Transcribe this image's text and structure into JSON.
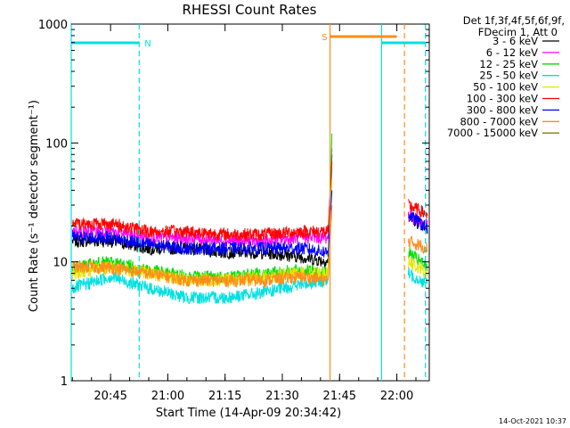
{
  "chart_data": {
    "type": "line",
    "title": "RHESSI Count Rates",
    "xlabel": "Start Time (14-Apr-09 20:34:42)",
    "ylabel": "Count Rate (s⁻¹ detector segment⁻¹)",
    "yscale": "log",
    "ylim": [
      1,
      1000
    ],
    "xlim": [
      "20:34:42",
      "22:08:30"
    ],
    "y_ticks": [
      "1",
      "10",
      "100",
      "1000"
    ],
    "x_ticks": [
      "20:45",
      "21:00",
      "21:15",
      "21:30",
      "21:45",
      "22:00"
    ],
    "legend_header": [
      "Det 1f,3f,4f,5f,6f,9f,",
      "FDecim 1, Att 0"
    ],
    "legend_position": "right",
    "timestamp": "14-Oct-2021 10:37",
    "attenuator_state": [
      {
        "label": "N",
        "start": "20:34:42",
        "end": "20:52:30",
        "color": "#00e0e0"
      },
      {
        "label": "S",
        "start": "21:42:30",
        "end": "22:00:00",
        "color": "#ff8c1a"
      },
      {
        "label": "",
        "start": "21:56:00",
        "end": "22:07:30",
        "color": "#00e0e0"
      }
    ],
    "vertical_markers": [
      {
        "time": "20:34:42",
        "color": "#00e0e0",
        "style": "solid"
      },
      {
        "time": "20:52:30",
        "color": "#00e0e0",
        "style": "dashed"
      },
      {
        "time": "21:42:30",
        "color": "#ff8c1a",
        "style": "solid"
      },
      {
        "time": "21:56:00",
        "color": "#00e0e0",
        "style": "solid"
      },
      {
        "time": "22:02:00",
        "color": "#ff8c1a",
        "style": "dashed"
      },
      {
        "time": "22:07:30",
        "color": "#00e0e0",
        "style": "dashed"
      }
    ],
    "series": [
      {
        "name": "3 - 6 keV",
        "color": "#000000",
        "x": [
          "20:35",
          "20:45",
          "20:55",
          "21:05",
          "21:15",
          "21:25",
          "21:35",
          "21:42",
          "21:43",
          "21:58",
          "22:03",
          "22:08"
        ],
        "y": [
          15,
          15,
          13,
          13,
          12,
          12,
          11,
          10,
          80,
          null,
          24,
          19
        ]
      },
      {
        "name": "6 - 12 keV",
        "color": "#ff00ff",
        "x": [
          "20:35",
          "20:45",
          "20:55",
          "21:05",
          "21:15",
          "21:25",
          "21:35",
          "21:42",
          "21:43",
          "21:58",
          "22:03",
          "22:08"
        ],
        "y": [
          18,
          18,
          16,
          16,
          15,
          15,
          16,
          16,
          90,
          null,
          25,
          20
        ]
      },
      {
        "name": "12 - 25 keV",
        "color": "#00dd00",
        "x": [
          "20:35",
          "20:45",
          "20:55",
          "21:05",
          "21:15",
          "21:25",
          "21:35",
          "21:42",
          "21:43",
          "21:58",
          "22:03",
          "22:08"
        ],
        "y": [
          9,
          10,
          8.5,
          7.5,
          7.5,
          8,
          8.5,
          8,
          120,
          null,
          12,
          9
        ]
      },
      {
        "name": "25 - 50 keV",
        "color": "#00e0e0",
        "x": [
          "20:35",
          "20:45",
          "20:55",
          "21:05",
          "21:15",
          "21:25",
          "21:35",
          "21:42",
          "21:43",
          "21:58",
          "22:03",
          "22:08"
        ],
        "y": [
          6,
          7.5,
          6,
          5,
          5,
          5.5,
          6.5,
          7,
          60,
          null,
          8,
          6.5
        ]
      },
      {
        "name": "50 - 100 keV",
        "color": "#e6e600",
        "x": [
          "20:35",
          "20:45",
          "20:55",
          "21:05",
          "21:15",
          "21:25",
          "21:35",
          "21:42",
          "21:43",
          "21:58",
          "22:03",
          "22:08"
        ],
        "y": [
          8,
          9,
          8,
          7,
          7,
          7.5,
          8,
          8,
          50,
          null,
          10,
          8
        ]
      },
      {
        "name": "100 - 300 keV",
        "color": "#ff0000",
        "x": [
          "20:35",
          "20:45",
          "20:55",
          "21:05",
          "21:15",
          "21:25",
          "21:35",
          "21:42",
          "21:43",
          "21:58",
          "22:03",
          "22:08"
        ],
        "y": [
          21,
          21,
          18,
          18,
          17,
          17,
          18,
          18,
          70,
          null,
          30,
          25
        ]
      },
      {
        "name": "300 - 800 keV",
        "color": "#0000ff",
        "x": [
          "20:35",
          "20:45",
          "20:55",
          "21:05",
          "21:15",
          "21:25",
          "21:35",
          "21:42",
          "21:43",
          "21:58",
          "22:03",
          "22:08"
        ],
        "y": [
          16,
          16,
          14,
          13,
          13,
          13,
          13,
          12,
          40,
          null,
          25,
          19
        ]
      },
      {
        "name": "800 - 7000 keV",
        "color": "#ff8c1a",
        "x": [
          "20:35",
          "20:45",
          "20:55",
          "21:05",
          "21:15",
          "21:25",
          "21:35",
          "21:42",
          "21:43",
          "21:58",
          "22:03",
          "22:08"
        ],
        "y": [
          9,
          9,
          8,
          7,
          7,
          7,
          7.5,
          7,
          30,
          null,
          15,
          13
        ]
      },
      {
        "name": "7000 - 15000 keV",
        "color": "#808000",
        "x": [
          "20:35",
          "20:45",
          "20:55",
          "21:05",
          "21:15",
          "21:25",
          "21:35",
          "21:42",
          "21:43",
          "21:58",
          "22:03",
          "22:08"
        ],
        "y": [
          null,
          null,
          null,
          null,
          null,
          null,
          null,
          null,
          null,
          null,
          null,
          null
        ]
      }
    ]
  }
}
